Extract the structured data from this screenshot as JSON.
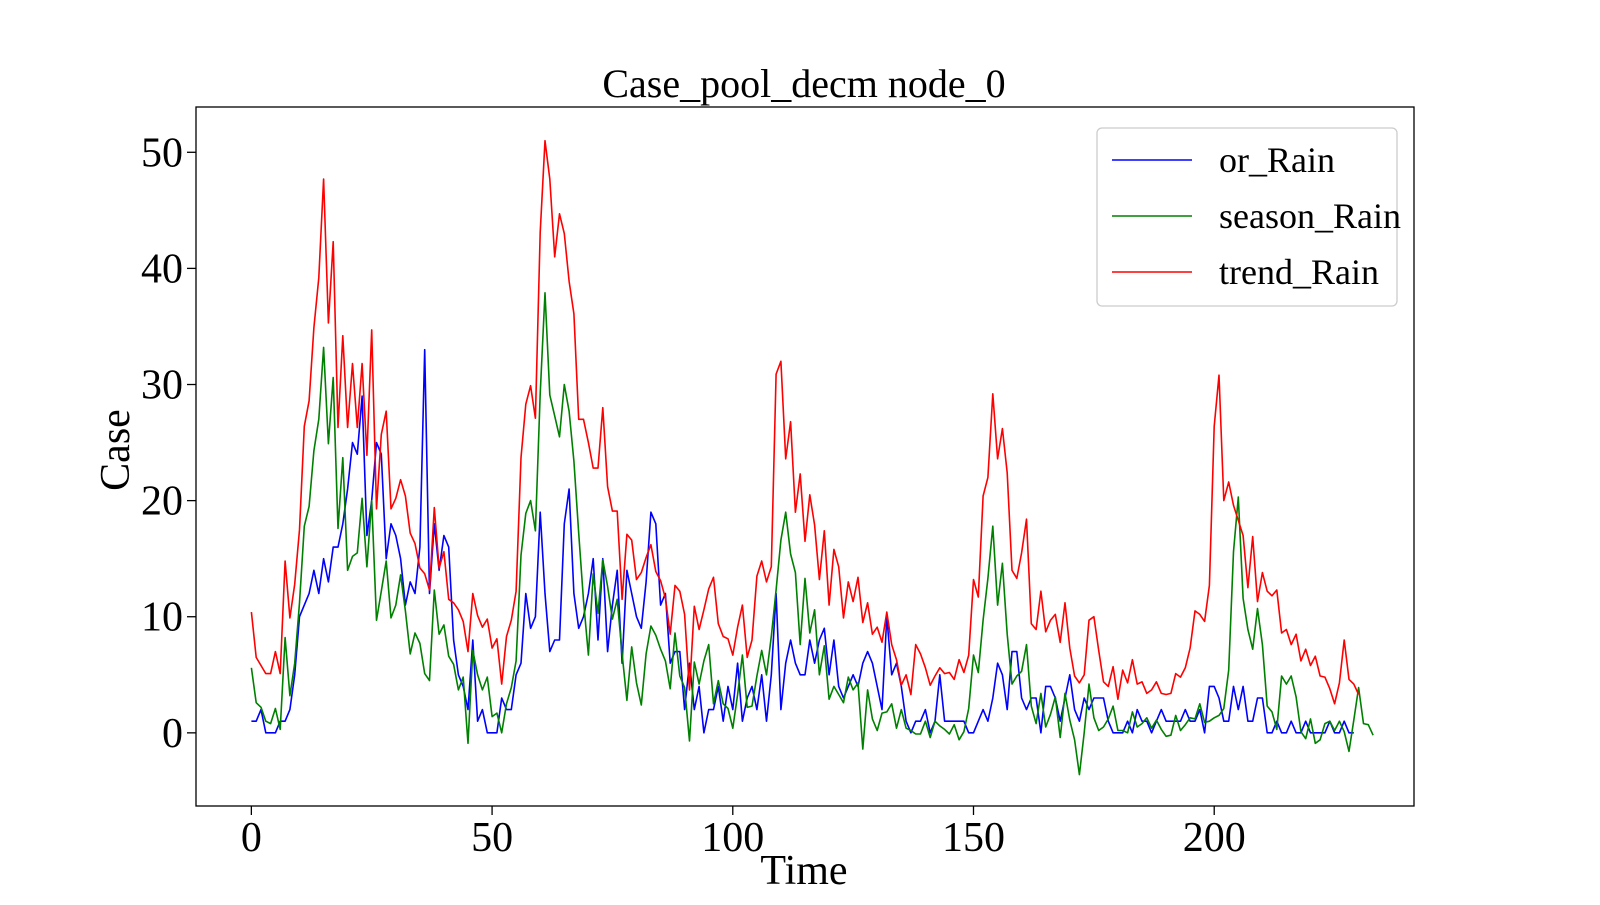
{
  "chart_data": {
    "type": "line",
    "title": "Case_pool_decm node_0",
    "xlabel": "Time",
    "ylabel": "Case",
    "xlim": [
      -11.5,
      241.5
    ],
    "ylim": [
      -6.3,
      53.9
    ],
    "xticks": [
      0,
      50,
      100,
      150,
      200
    ],
    "yticks": [
      0,
      10,
      20,
      30,
      40,
      50
    ],
    "legend_position": "top-right",
    "grid": false,
    "series": [
      {
        "name": "or_Rain",
        "color": "#0000ff",
        "x_start": 0,
        "values": [
          1,
          1,
          2,
          0,
          0,
          0,
          1,
          1,
          2,
          5,
          10,
          11,
          12,
          14,
          12,
          15,
          13,
          16,
          16,
          18,
          21,
          25,
          24,
          29,
          17,
          20,
          25,
          24,
          15,
          18,
          17,
          15,
          11,
          13,
          12,
          16,
          33,
          12,
          18,
          14,
          17,
          16,
          8,
          5,
          4,
          2,
          8,
          1,
          2,
          0,
          0,
          0,
          3,
          2,
          2,
          5,
          6,
          12,
          9,
          10,
          19,
          12,
          7,
          8,
          8,
          18,
          21,
          12,
          9,
          10,
          12,
          15,
          8,
          15,
          7,
          11,
          14,
          6,
          14,
          12,
          10,
          9,
          13,
          19,
          18,
          11,
          12,
          6,
          7,
          7,
          2,
          6,
          2,
          4,
          0,
          2,
          2,
          4,
          1,
          4,
          2,
          6,
          1,
          3,
          4,
          2,
          5,
          1,
          5,
          12,
          2,
          6,
          8,
          6,
          5,
          5,
          8,
          6,
          8,
          9,
          5,
          8,
          4,
          3,
          4,
          5,
          4,
          6,
          7,
          6,
          4,
          2,
          10,
          5,
          6,
          4,
          1,
          0,
          1,
          1,
          2,
          0,
          1,
          5,
          1,
          1,
          1,
          1,
          1,
          0,
          0,
          1,
          2,
          1,
          3,
          6,
          5,
          2,
          7,
          7,
          3,
          2,
          3,
          3,
          0,
          4,
          4,
          3,
          1,
          3,
          5,
          2,
          1,
          3,
          2,
          3,
          3,
          3,
          1,
          0,
          0,
          0,
          1,
          0,
          2,
          1,
          1,
          0,
          1,
          2,
          1,
          1,
          1,
          1,
          2,
          1,
          1,
          2,
          0,
          4,
          4,
          3,
          1,
          1,
          4,
          2,
          4,
          1,
          1,
          3,
          3,
          0,
          0,
          1,
          0,
          0,
          1,
          0,
          0,
          1,
          0,
          0,
          0,
          0,
          1,
          0,
          0,
          1,
          0,
          0
        ],
        "label_x": 1125
      },
      {
        "name": "season_Rain",
        "color": "#008000",
        "x_start": 0,
        "values": [
          5.6,
          2.6,
          2.2,
          1.0,
          0.8,
          2.1,
          0.3,
          8.2,
          3.2,
          6.0,
          11.2,
          17.8,
          19.5,
          24.3,
          27.0,
          33.2,
          24.9,
          30.6,
          17.6,
          23.7,
          14.0,
          15.2,
          15.5,
          20.2,
          14.3,
          20.0,
          9.7,
          12.2,
          14.8,
          9.9,
          11.0,
          13.6,
          10.5,
          6.8,
          8.6,
          7.7,
          5.1,
          4.5,
          12.3,
          8.5,
          9.3,
          6.6,
          5.9,
          3.7,
          4.8,
          -0.9,
          7.1,
          5.0,
          3.7,
          4.8,
          1.4,
          1.7,
          0.0,
          2.5,
          3.9,
          6.2,
          15.3,
          18.9,
          20.0,
          17.4,
          29.2,
          37.9,
          29.1,
          27.3,
          25.5,
          30.0,
          27.7,
          23.4,
          17.2,
          11.4,
          6.7,
          13.7,
          10.3,
          14.9,
          12.6,
          9.8,
          11.5,
          6.8,
          2.8,
          7.4,
          4.3,
          2.4,
          6.8,
          9.2,
          8.4,
          7.2,
          6.2,
          3.8,
          8.6,
          4.9,
          3.9,
          -0.7,
          6.1,
          4.2,
          6.2,
          7.6,
          2.5,
          4.5,
          2.5,
          2.1,
          0.4,
          3.3,
          6.7,
          2.2,
          2.3,
          4.9,
          7.1,
          5.0,
          8.3,
          12.3,
          16.6,
          19.0,
          15.4,
          13.8,
          7.6,
          13.3,
          8.6,
          10.6,
          5.0,
          7.5,
          2.9,
          4.0,
          3.3,
          2.6,
          4.8,
          3.7,
          4.3,
          -1.4,
          3.7,
          1.2,
          0.2,
          1.7,
          1.8,
          2.5,
          0.4,
          2.0,
          0.4,
          0.2,
          -0.1,
          -0.1,
          1.0,
          -0.4,
          1.0,
          0.6,
          0.3,
          -0.1,
          0.7,
          -0.6,
          0.1,
          2.1,
          6.7,
          5.2,
          9.7,
          13.3,
          17.8,
          11.0,
          14.6,
          8.5,
          4.2,
          4.9,
          5.3,
          7.6,
          2.3,
          0.8,
          3.4,
          0.5,
          1.6,
          3.1,
          -0.4,
          3.4,
          1.1,
          -0.6,
          -3.6,
          0.0,
          4.2,
          1.3,
          0.2,
          0.5,
          1.2,
          2.3,
          0.2,
          0.2,
          0.0,
          1.8,
          0.5,
          0.8,
          1.3,
          0.4,
          1.1,
          0.3,
          -0.3,
          -0.2,
          1.5,
          0.2,
          0.7,
          1.3,
          1.2,
          2.5,
          0.9,
          1.0,
          1.3,
          1.5,
          2.1,
          5.4,
          15.6,
          20.3,
          11.6,
          8.9,
          7.2,
          10.7,
          7.6,
          2.3,
          1.8,
          0.3,
          4.9,
          4.2,
          4.9,
          3.1,
          0.1,
          -0.5,
          1.2,
          -0.9,
          -0.6,
          0.8,
          1.0,
          0.2,
          1.0,
          0.1,
          -1.6,
          1.1,
          3.9,
          0.8,
          0.7,
          -0.2
        ],
        "label_x": 1179
      },
      {
        "name": "trend_Rain",
        "color": "#ff0000",
        "x_start": 0,
        "values": [
          10.4,
          6.5,
          5.8,
          5.1,
          5.1,
          7.0,
          5.1,
          14.8,
          9.9,
          12.8,
          17.5,
          26.4,
          28.6,
          34.9,
          39.2,
          47.7,
          35.3,
          42.3,
          26.3,
          34.2,
          26.3,
          31.8,
          26.3,
          31.8,
          23.9,
          34.7,
          19.3,
          25.7,
          27.7,
          19.3,
          20.2,
          21.8,
          20.4,
          17.2,
          16.3,
          14.2,
          13.7,
          12.3,
          19.4,
          14.2,
          15.6,
          11.5,
          11.2,
          10.6,
          9.6,
          7.0,
          12.0,
          10.1,
          9.1,
          9.8,
          7.3,
          8.1,
          4.2,
          8.3,
          9.7,
          12.2,
          23.7,
          28.3,
          29.9,
          27.1,
          43.1,
          51.0,
          47.7,
          41.0,
          44.7,
          43.0,
          38.9,
          36.1,
          27.0,
          27.0,
          25.0,
          22.8,
          22.8,
          28.0,
          21.2,
          19.1,
          19.1,
          11.5,
          17.1,
          16.6,
          13.2,
          13.8,
          15.1,
          16.2,
          13.9,
          13.1,
          11.6,
          8.5,
          12.7,
          12.2,
          10.2,
          3.7,
          10.9,
          8.9,
          10.6,
          12.4,
          13.4,
          9.4,
          8.3,
          8.1,
          6.7,
          9.1,
          11.0,
          6.5,
          8.0,
          13.5,
          14.8,
          13.0,
          14.3,
          30.9,
          32.0,
          23.6,
          26.8,
          19.0,
          22.3,
          16.5,
          20.5,
          17.9,
          13.2,
          17.4,
          11.0,
          15.8,
          14.3,
          9.9,
          13.0,
          11.3,
          13.4,
          9.5,
          11.2,
          8.5,
          9.1,
          7.8,
          10.4,
          7.6,
          6.3,
          4.1,
          5.0,
          3.3,
          7.6,
          6.8,
          5.6,
          4.1,
          4.9,
          5.6,
          5.1,
          5.2,
          4.6,
          6.3,
          5.2,
          6.7,
          13.2,
          11.7,
          20.4,
          22.0,
          29.2,
          23.6,
          26.2,
          22.4,
          14.0,
          13.3,
          15.5,
          18.4,
          9.4,
          8.9,
          12.2,
          8.7,
          9.7,
          10.2,
          7.8,
          11.2,
          7.3,
          4.9,
          4.3,
          5.0,
          9.7,
          10.0,
          7.1,
          4.4,
          4.0,
          5.7,
          2.9,
          5.4,
          4.3,
          6.3,
          4.2,
          4.4,
          3.4,
          3.7,
          4.4,
          3.4,
          3.3,
          3.4,
          5.1,
          4.8,
          5.6,
          7.3,
          10.5,
          10.2,
          9.6,
          12.7,
          26.4,
          30.8,
          20.0,
          21.6,
          19.6,
          18.3,
          17.0,
          12.5,
          16.9,
          11.3,
          13.8,
          12.2,
          11.8,
          12.3,
          8.6,
          8.9,
          7.6,
          8.5,
          6.2,
          7.2,
          5.8,
          6.6,
          4.9,
          4.8,
          3.8,
          2.5,
          4.3,
          8.0,
          4.6,
          4.2,
          3.3
        ],
        "label_x": 1234
      }
    ]
  }
}
